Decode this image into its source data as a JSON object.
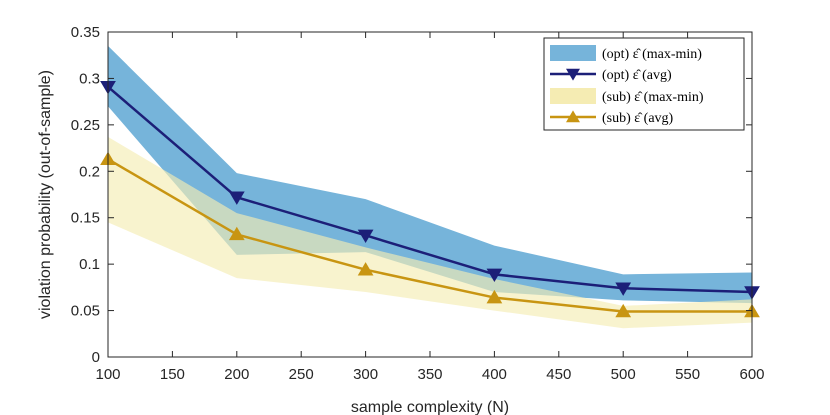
{
  "chart_data": {
    "type": "line",
    "title": "",
    "xlabel": "sample complexity (N)",
    "ylabel": "violation probability (out-of-sample)",
    "xlim": [
      100,
      600
    ],
    "ylim": [
      0,
      0.35
    ],
    "xticks": [
      100,
      150,
      200,
      250,
      300,
      350,
      400,
      450,
      500,
      550,
      600
    ],
    "yticks": [
      0,
      0.05,
      0.1,
      0.15,
      0.2,
      0.25,
      0.3,
      0.35
    ],
    "xtick_labels": [
      "100",
      "150",
      "200",
      "250",
      "300",
      "350",
      "400",
      "450",
      "500",
      "550",
      "600"
    ],
    "ytick_labels": [
      "0",
      "0.05",
      "0.1",
      "0.15",
      "0.2",
      "0.25",
      "0.3",
      "0.35"
    ],
    "x": [
      100,
      200,
      300,
      400,
      500,
      600
    ],
    "bands": [
      {
        "name": "(opt) ε̂ (max-min)",
        "color": "#76b4da",
        "upper": [
          0.335,
          0.198,
          0.17,
          0.12,
          0.089,
          0.091
        ],
        "lower": [
          0.27,
          0.11,
          0.113,
          0.07,
          0.061,
          0.058
        ]
      },
      {
        "name": "(sub) ε̂ (max-min)",
        "color": "#f5ecb3",
        "upper": [
          0.237,
          0.155,
          0.118,
          0.084,
          0.055,
          0.062
        ],
        "lower": [
          0.145,
          0.085,
          0.07,
          0.05,
          0.031,
          0.037
        ]
      }
    ],
    "series": [
      {
        "name": "(opt) ε̂ (avg)",
        "color": "#1c1f78",
        "marker": "triangle-down",
        "values": [
          0.291,
          0.172,
          0.131,
          0.089,
          0.074,
          0.07
        ]
      },
      {
        "name": "(sub) ε̂ (avg)",
        "color": "#c89512",
        "marker": "triangle-up",
        "values": [
          0.213,
          0.132,
          0.094,
          0.064,
          0.049,
          0.049
        ]
      }
    ],
    "legend": {
      "position": "top-right",
      "entries": [
        "(opt) ε̂ (max-min)",
        "(opt) ε̂ (avg)",
        "(sub) ε̂ (max-min)",
        "(sub) ε̂ (avg)"
      ]
    }
  }
}
